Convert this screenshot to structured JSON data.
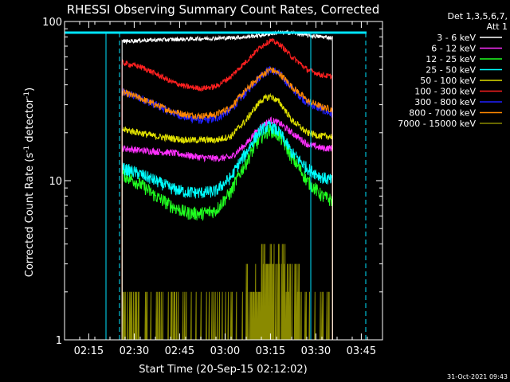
{
  "chart_data": {
    "type": "line",
    "title": "RHESSI Observing Summary Count Rates, Corrected",
    "xlabel": "Start Time (20-Sep-15 02:12:02)",
    "ylabel_main": "Corrected Count Rate (s",
    "ylabel_sup1": "-1",
    "ylabel_mid": " detector",
    "ylabel_sup2": "-1",
    "ylabel_end": ")",
    "yscale": "log",
    "ylim": [
      1,
      100
    ],
    "xlim_minutes": [
      -5,
      100
    ],
    "x_ticks": [
      "02:15",
      "02:30",
      "02:45",
      "03:00",
      "03:15",
      "03:30",
      "03:45"
    ],
    "y_ticks": [
      "1",
      "10",
      "100"
    ],
    "footer": "31-Oct-2021 09:43",
    "legend_header": [
      "Det 1,3,5,6,7,",
      "Att 1"
    ],
    "legend_position": "right",
    "data_window_minutes": [
      14.0,
      83.5
    ],
    "series": [
      {
        "name": "3 - 6 keV",
        "color": "#ffffff",
        "points": [
          [
            14,
            75
          ],
          [
            20,
            76
          ],
          [
            30,
            77
          ],
          [
            40,
            78
          ],
          [
            50,
            79
          ],
          [
            55,
            80
          ],
          [
            60,
            82
          ],
          [
            65,
            85
          ],
          [
            70,
            85
          ],
          [
            75,
            82
          ],
          [
            80,
            80
          ],
          [
            83.5,
            79
          ]
        ],
        "noise": 0.03
      },
      {
        "name": "6 - 12 keV",
        "color": "#ff30ff",
        "points": [
          [
            14,
            16
          ],
          [
            20,
            15.5
          ],
          [
            30,
            15
          ],
          [
            40,
            14
          ],
          [
            45,
            13.8
          ],
          [
            50,
            14
          ],
          [
            55,
            17
          ],
          [
            60,
            22
          ],
          [
            63,
            24
          ],
          [
            66,
            23
          ],
          [
            70,
            20
          ],
          [
            75,
            17
          ],
          [
            80,
            16
          ],
          [
            83.5,
            16
          ]
        ],
        "noise": 0.05
      },
      {
        "name": "12 - 25 keV",
        "color": "#20ff20",
        "points": [
          [
            14,
            11
          ],
          [
            20,
            9.5
          ],
          [
            25,
            8
          ],
          [
            30,
            7
          ],
          [
            35,
            6.3
          ],
          [
            40,
            6.2
          ],
          [
            45,
            6.5
          ],
          [
            50,
            8.5
          ],
          [
            55,
            13
          ],
          [
            60,
            19
          ],
          [
            63,
            21
          ],
          [
            66,
            19
          ],
          [
            70,
            14
          ],
          [
            75,
            10
          ],
          [
            80,
            8
          ],
          [
            83.5,
            7.5
          ]
        ],
        "noise": 0.1
      },
      {
        "name": "25 - 50 keV",
        "color": "#00ffff",
        "points": [
          [
            14,
            12
          ],
          [
            20,
            11
          ],
          [
            25,
            10
          ],
          [
            30,
            9
          ],
          [
            35,
            8.5
          ],
          [
            40,
            8.4
          ],
          [
            45,
            8.6
          ],
          [
            50,
            10.5
          ],
          [
            55,
            15
          ],
          [
            60,
            21
          ],
          [
            63,
            22
          ],
          [
            66,
            20
          ],
          [
            70,
            15
          ],
          [
            75,
            12
          ],
          [
            80,
            10.5
          ],
          [
            83.5,
            10
          ]
        ],
        "noise": 0.09
      },
      {
        "name": "50 - 100 keV",
        "color": "#e0e000",
        "points": [
          [
            14,
            21
          ],
          [
            20,
            20
          ],
          [
            25,
            19
          ],
          [
            30,
            18.5
          ],
          [
            35,
            18
          ],
          [
            40,
            18
          ],
          [
            45,
            18
          ],
          [
            50,
            19
          ],
          [
            55,
            24
          ],
          [
            60,
            32
          ],
          [
            63,
            34
          ],
          [
            66,
            31
          ],
          [
            70,
            24
          ],
          [
            75,
            20
          ],
          [
            80,
            19
          ],
          [
            83.5,
            19
          ]
        ],
        "noise": 0.05
      },
      {
        "name": "100 - 300 keV",
        "color": "#ff2020",
        "points": [
          [
            14,
            55
          ],
          [
            20,
            52
          ],
          [
            25,
            47
          ],
          [
            30,
            42
          ],
          [
            35,
            39
          ],
          [
            40,
            38
          ],
          [
            45,
            39
          ],
          [
            50,
            45
          ],
          [
            55,
            56
          ],
          [
            60,
            70
          ],
          [
            63,
            76
          ],
          [
            66,
            72
          ],
          [
            70,
            60
          ],
          [
            75,
            50
          ],
          [
            80,
            46
          ],
          [
            83.5,
            45
          ]
        ],
        "noise": 0.04
      },
      {
        "name": "300 - 800 keV",
        "color": "#2020ff",
        "points": [
          [
            14,
            36
          ],
          [
            20,
            33
          ],
          [
            25,
            30
          ],
          [
            30,
            27
          ],
          [
            35,
            25
          ],
          [
            40,
            24
          ],
          [
            45,
            24.5
          ],
          [
            50,
            28
          ],
          [
            55,
            36
          ],
          [
            60,
            46
          ],
          [
            63,
            50
          ],
          [
            66,
            47
          ],
          [
            70,
            38
          ],
          [
            75,
            31
          ],
          [
            80,
            28
          ],
          [
            83.5,
            26
          ]
        ],
        "noise": 0.06
      },
      {
        "name": "800 - 7000 keV",
        "color": "#ff8800",
        "points": [
          [
            14,
            36
          ],
          [
            20,
            33
          ],
          [
            25,
            30
          ],
          [
            30,
            27.5
          ],
          [
            35,
            26
          ],
          [
            40,
            25.5
          ],
          [
            45,
            26
          ],
          [
            50,
            29
          ],
          [
            55,
            37
          ],
          [
            60,
            46
          ],
          [
            63,
            50
          ],
          [
            66,
            47
          ],
          [
            70,
            39
          ],
          [
            75,
            32
          ],
          [
            80,
            29
          ],
          [
            83.5,
            28
          ]
        ],
        "noise": 0.05
      },
      {
        "name": "7000 - 15000 keV",
        "color": "#8a8a00",
        "points": [
          [
            14,
            1.5
          ],
          [
            83.5,
            1.5
          ]
        ],
        "noise": 0
      }
    ]
  }
}
